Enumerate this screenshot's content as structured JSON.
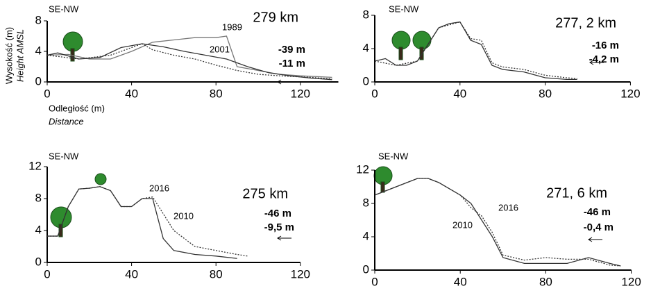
{
  "chart_data": [
    {
      "type": "line",
      "title": "SE-NW",
      "y_label": "Wysokość (m)",
      "y_label_en": "Height AMSL",
      "x_label": "Odległość (m)",
      "x_label_en": "Distance",
      "annotations": [
        "279 km",
        "-39 m",
        "-11 m"
      ],
      "xlim": [
        0,
        138
      ],
      "ylim": [
        0,
        8
      ],
      "xticks": [
        0,
        40,
        80,
        120
      ],
      "yticks": [
        0,
        4,
        8
      ],
      "series": [
        {
          "name": "1989",
          "color": "#777777",
          "x": [
            0,
            10,
            20,
            30,
            40,
            50,
            60,
            70,
            80,
            85,
            90,
            100,
            110,
            120,
            135
          ],
          "values": [
            3.5,
            3.6,
            3,
            3,
            4,
            5.2,
            5.5,
            5.8,
            5.8,
            6,
            2,
            1.5,
            1,
            0.8,
            0.6
          ]
        },
        {
          "name": "2001",
          "color": "#333333",
          "x": [
            0,
            5,
            15,
            25,
            35,
            45,
            55,
            65,
            75,
            85,
            95,
            105,
            115,
            125,
            135
          ],
          "values": [
            3.5,
            3.8,
            3,
            3.2,
            4.5,
            5,
            4.6,
            4,
            3.5,
            3,
            2,
            1.2,
            0.8,
            0.5,
            0.3
          ]
        },
        {
          "color": "#333333",
          "dash": true,
          "x": [
            0,
            15,
            30,
            45,
            50,
            60,
            70,
            80,
            90,
            100,
            110,
            125,
            135
          ],
          "values": [
            3.5,
            3,
            3.5,
            5,
            4.2,
            3.5,
            3,
            2.2,
            1.5,
            1,
            0.8,
            0.6,
            0.4
          ]
        }
      ]
    },
    {
      "type": "line",
      "title": "SE-NW",
      "annotations": [
        "277, 2  km",
        "-16 m",
        "-4,2 m"
      ],
      "xlim": [
        0,
        120
      ],
      "ylim": [
        0,
        8
      ],
      "xticks": [
        0,
        40,
        80,
        120
      ],
      "yticks": [
        0,
        4,
        8
      ],
      "series": [
        {
          "color": "#333333",
          "x": [
            0,
            5,
            10,
            15,
            20,
            25,
            30,
            35,
            40,
            45,
            50,
            55,
            60,
            70,
            80,
            90,
            95
          ],
          "values": [
            2.5,
            2.8,
            2,
            2,
            2.5,
            4.5,
            6.5,
            7,
            7.2,
            5,
            4.5,
            2,
            1.5,
            1.2,
            0.5,
            0.3,
            0.3
          ]
        },
        {
          "color": "#333333",
          "dash": true,
          "x": [
            0,
            10,
            20,
            30,
            40,
            45,
            50,
            55,
            60,
            70,
            80,
            90,
            95
          ],
          "values": [
            2.5,
            2,
            2.5,
            6.5,
            7.2,
            5.2,
            5,
            2.3,
            1.8,
            1.5,
            0.8,
            0.5,
            0.4
          ]
        }
      ]
    },
    {
      "type": "line",
      "title": "SE-NW",
      "annotations": [
        "275 km",
        "-46 m",
        "-9,5 m"
      ],
      "xlim": [
        0,
        120
      ],
      "ylim": [
        0,
        12
      ],
      "xticks": [
        0,
        40,
        80,
        120
      ],
      "yticks": [
        0,
        4,
        8,
        12
      ],
      "series": [
        {
          "name": "2016",
          "color": "#333333",
          "dash": true,
          "x": [
            0,
            5,
            10,
            15,
            20,
            25,
            30,
            35,
            40,
            45,
            50,
            60,
            70,
            80,
            90,
            95
          ],
          "values": [
            3.3,
            3.3,
            7,
            9.2,
            9.3,
            9.5,
            9,
            7,
            7,
            8,
            8.2,
            4,
            2,
            1.5,
            1,
            0.8
          ]
        },
        {
          "name": "2010",
          "color": "#333333",
          "x": [
            0,
            5,
            10,
            15,
            20,
            25,
            30,
            35,
            40,
            45,
            50,
            55,
            60,
            70,
            80,
            90
          ],
          "values": [
            3.3,
            3.3,
            7,
            9.2,
            9.3,
            9.5,
            9,
            7,
            7,
            8,
            8,
            3,
            1.5,
            1,
            0.8,
            0.5
          ]
        }
      ]
    },
    {
      "type": "line",
      "title": "SE-NW",
      "annotations": [
        "271, 6 km",
        "-46 m",
        "-0,4 m"
      ],
      "xlim": [
        0,
        120
      ],
      "ylim": [
        0,
        12
      ],
      "xticks": [
        0,
        40,
        80,
        120
      ],
      "yticks": [
        0,
        4,
        8,
        12
      ],
      "series": [
        {
          "name": "2016",
          "color": "#333333",
          "dash": true,
          "x": [
            0,
            10,
            20,
            25,
            30,
            40,
            45,
            50,
            55,
            60,
            70,
            80,
            90,
            100,
            110,
            115
          ],
          "values": [
            9,
            10,
            11,
            11,
            10.5,
            9,
            7.5,
            6.5,
            4.5,
            1.8,
            1.2,
            1.5,
            1.3,
            1.3,
            0.6,
            0.5
          ]
        },
        {
          "name": "2010",
          "color": "#333333",
          "x": [
            0,
            10,
            20,
            25,
            30,
            40,
            45,
            50,
            55,
            60,
            70,
            80,
            90,
            100,
            110,
            115
          ],
          "values": [
            9,
            10,
            11,
            11,
            10.5,
            9,
            8,
            6,
            4,
            1.5,
            0.8,
            0.8,
            0.8,
            1.5,
            0.8,
            0.5
          ]
        }
      ]
    }
  ]
}
